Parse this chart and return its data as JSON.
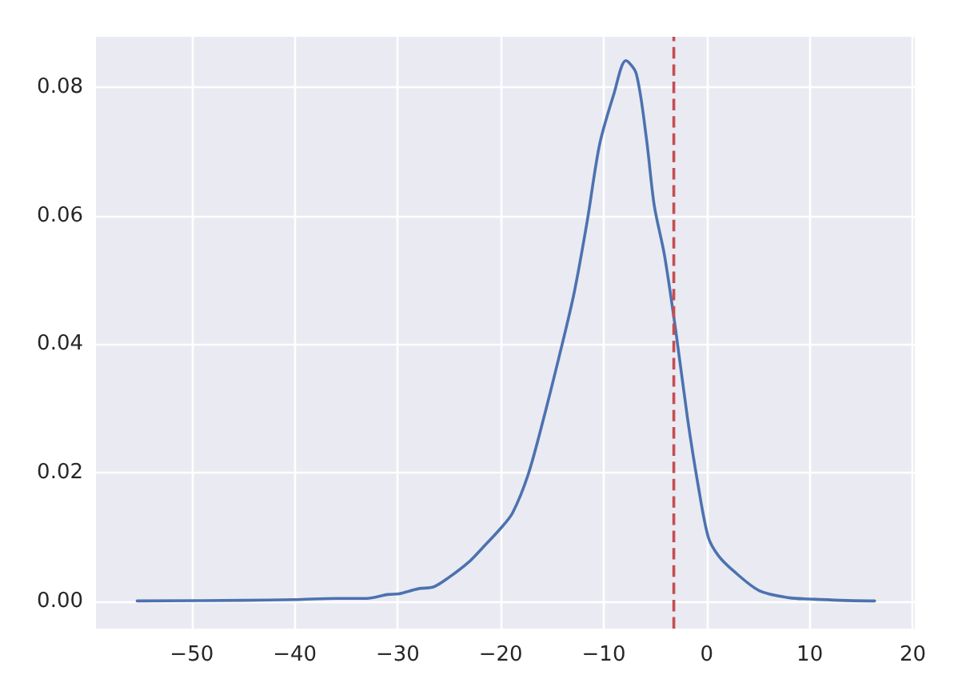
{
  "chart_data": {
    "type": "line",
    "x": [
      -55.3,
      -45,
      -40,
      -36,
      -33,
      -31,
      -29.9,
      -28,
      -26.5,
      -25,
      -23,
      -21.8,
      -20,
      -18.85,
      -17.35,
      -15.85,
      -14.1,
      -12.85,
      -11.6,
      -10.4,
      -9,
      -7.86,
      -6.85,
      -5.85,
      -5.1,
      -4.1,
      -3.0,
      -1.86,
      -0.85,
      0.15,
      1.15,
      2.65,
      5.1,
      8,
      10,
      13,
      16.3
    ],
    "series": [
      {
        "color": "#4c72b0",
        "values": [
          0.0001,
          0.0002,
          0.0003,
          0.0005,
          0.0005,
          0.0011,
          0.0012,
          0.002,
          0.0023,
          0.0038,
          0.0063,
          0.0083,
          0.0114,
          0.0138,
          0.0197,
          0.0284,
          0.0396,
          0.0482,
          0.0592,
          0.0711,
          0.079,
          0.0841,
          0.0821,
          0.0719,
          0.0616,
          0.0538,
          0.042,
          0.0284,
          0.0182,
          0.01,
          0.0071,
          0.0047,
          0.0017,
          0.0006,
          0.0004,
          0.0002,
          0.0001
        ]
      }
    ],
    "xlim": [
      -59.3,
      20.2
    ],
    "xticks": [
      {
        "value": -50,
        "label": "−50"
      },
      {
        "value": -40,
        "label": "−40"
      },
      {
        "value": -30,
        "label": "−30"
      },
      {
        "value": -20,
        "label": "−20"
      },
      {
        "value": -10,
        "label": "−10"
      },
      0,
      10,
      20
    ],
    "ylim": [
      -0.0042,
      0.0878
    ],
    "yticks": [
      {
        "value": 0,
        "label": "0.00"
      },
      {
        "value": 0.02,
        "label": "0.02"
      },
      {
        "value": 0.04,
        "label": "0.04"
      },
      {
        "value": 0.06,
        "label": "0.06"
      },
      {
        "value": 0.08,
        "label": "0.08"
      }
    ],
    "ref_lines": [
      {
        "axis": "x",
        "value": -3.2,
        "color": "#c44e52",
        "line_style": "dashed"
      }
    ],
    "grid": true,
    "marker": "none",
    "line_style": "solid"
  }
}
